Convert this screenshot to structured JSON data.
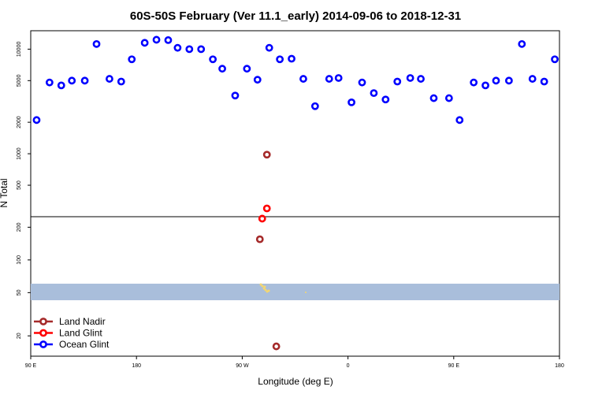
{
  "chart_data": {
    "type": "scatter",
    "title": "60S-50S February (Ver 11.1_early)   2014-09-06 to 2018-12-31",
    "xlabel": "Longitude (deg E)",
    "ylabel": "N Total",
    "x_ticks": [
      {
        "value": 90,
        "label": "90 E"
      },
      {
        "value": 180,
        "label": "180"
      },
      {
        "value": 270,
        "label": "90 W"
      },
      {
        "value": 360,
        "label": "0"
      },
      {
        "value": 450,
        "label": "90 E"
      },
      {
        "value": 540,
        "label": "180"
      }
    ],
    "xlim": [
      90,
      540
    ],
    "y_scale": "log",
    "upper_panel": {
      "ylim": [
        250,
        15000
      ],
      "y_ticks": [
        500,
        1000,
        2000,
        5000,
        10000
      ]
    },
    "lower_panel": {
      "ylim": [
        13,
        250
      ],
      "y_ticks": [
        20,
        50,
        100,
        200
      ]
    },
    "map_band": {
      "color": "#a9bedb",
      "land_color": "#f5d76e"
    },
    "legend_position": "bottom-left",
    "series": [
      {
        "name": "Land Nadir",
        "color": "#a52a2a",
        "points": [
          [
            291,
            980
          ],
          [
            285,
            155
          ],
          [
            299,
            16
          ]
        ]
      },
      {
        "name": "Land Glint",
        "color": "#ff0000",
        "points": [
          [
            291,
            300
          ],
          [
            287,
            240
          ]
        ]
      },
      {
        "name": "Ocean Glint",
        "color": "#0000ff",
        "points": [
          [
            95,
            2100
          ],
          [
            106,
            4800
          ],
          [
            116,
            4500
          ],
          [
            125,
            5000
          ],
          [
            136,
            5000
          ],
          [
            146,
            11200
          ],
          [
            157,
            5200
          ],
          [
            167,
            4900
          ],
          [
            176,
            8000
          ],
          [
            187,
            11500
          ],
          [
            197,
            12300
          ],
          [
            207,
            12200
          ],
          [
            215,
            10300
          ],
          [
            225,
            10000
          ],
          [
            235,
            10000
          ],
          [
            245,
            8000
          ],
          [
            253,
            6500
          ],
          [
            264,
            3600
          ],
          [
            274,
            6500
          ],
          [
            283,
            5100
          ],
          [
            293,
            10300
          ],
          [
            302,
            8000
          ],
          [
            312,
            8100
          ],
          [
            322,
            5200
          ],
          [
            332,
            2850
          ],
          [
            344,
            5200
          ],
          [
            352,
            5300
          ],
          [
            363,
            3100
          ],
          [
            372,
            4800
          ],
          [
            382,
            3800
          ],
          [
            392,
            3300
          ],
          [
            402,
            4900
          ],
          [
            413,
            5300
          ],
          [
            422,
            5200
          ],
          [
            433,
            3400
          ],
          [
            446,
            3400
          ],
          [
            455,
            2100
          ],
          [
            467,
            4800
          ],
          [
            477,
            4500
          ],
          [
            486,
            5000
          ],
          [
            497,
            5000
          ],
          [
            508,
            11200
          ],
          [
            517,
            5200
          ],
          [
            527,
            4900
          ],
          [
            536,
            8000
          ]
        ]
      }
    ]
  }
}
